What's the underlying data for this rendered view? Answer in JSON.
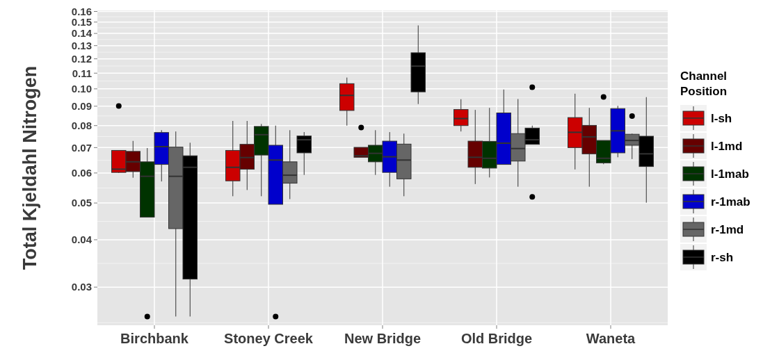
{
  "chart_data": {
    "type": "box",
    "ylabel": "Total Kjeldahl Nitrogen",
    "legend_title": "Channel Position",
    "legend": "right",
    "log": true,
    "grid": true,
    "categories": [
      "Birchbank",
      "Stoney Creek",
      "New Bridge",
      "Old Bridge",
      "Waneta"
    ],
    "ylim": [
      0.0238,
      0.161
    ],
    "yticks": [
      0.03,
      0.04,
      0.05,
      0.06,
      0.07,
      0.08,
      0.09,
      {
        "value": 0.1,
        "label": "0.10"
      },
      0.11,
      0.12,
      0.13,
      0.14,
      0.15,
      0.16
    ],
    "series": [
      {
        "name": "l-sh",
        "color": "#cc0000",
        "boxes": [
          {
            "low": 0.06,
            "q1": 0.0602,
            "median": 0.0614,
            "q3": 0.0688,
            "high": 0.0688,
            "outliers": [
              0.0901
            ]
          },
          {
            "low": 0.0521,
            "q1": 0.0572,
            "median": 0.0621,
            "q3": 0.0688,
            "high": 0.0823
          },
          {
            "low": 0.08,
            "q1": 0.0877,
            "median": 0.0961,
            "q3": 0.1032,
            "high": 0.1071
          },
          {
            "low": 0.0772,
            "q1": 0.08,
            "median": 0.0835,
            "q3": 0.0882,
            "high": 0.0939
          },
          {
            "low": 0.0613,
            "q1": 0.07,
            "median": 0.0768,
            "q3": 0.084,
            "high": 0.0971
          }
        ]
      },
      {
        "name": "l-1md",
        "color": "#660000",
        "boxes": [
          {
            "low": 0.0583,
            "q1": 0.0605,
            "median": 0.0642,
            "q3": 0.0684,
            "high": 0.0729
          },
          {
            "low": 0.0541,
            "q1": 0.0614,
            "median": 0.0659,
            "q3": 0.0714,
            "high": 0.0823
          },
          {
            "low": 0.066,
            "q1": 0.066,
            "median": 0.0666,
            "q3": 0.0701,
            "high": 0.0701,
            "outliers": [
              0.0791
            ]
          },
          {
            "low": 0.0561,
            "q1": 0.0621,
            "median": 0.066,
            "q3": 0.0728,
            "high": 0.088
          },
          {
            "low": 0.0552,
            "q1": 0.0674,
            "median": 0.0747,
            "q3": 0.0801,
            "high": 0.0891
          }
        ]
      },
      {
        "name": "l-1mab",
        "color": "#003300",
        "boxes": [
          {
            "low": 0.0459,
            "q1": 0.0459,
            "median": 0.0588,
            "q3": 0.0642,
            "high": 0.0698,
            "outliers": [
              0.0251
            ]
          },
          {
            "low": 0.0521,
            "q1": 0.0669,
            "median": 0.0757,
            "q3": 0.0796,
            "high": 0.0808
          },
          {
            "low": 0.0593,
            "q1": 0.0642,
            "median": 0.0676,
            "q3": 0.071,
            "high": 0.0778
          },
          {
            "low": 0.0584,
            "q1": 0.0618,
            "median": 0.0656,
            "q3": 0.0727,
            "high": 0.0891
          },
          {
            "low": 0.0633,
            "q1": 0.0638,
            "median": 0.0656,
            "q3": 0.0731,
            "high": 0.0731,
            "outliers": [
              0.0952
            ]
          }
        ]
      },
      {
        "name": "r-1mab",
        "color": "#0000cc",
        "boxes": [
          {
            "low": 0.057,
            "q1": 0.0632,
            "median": 0.0704,
            "q3": 0.0767,
            "high": 0.0778
          },
          {
            "low": 0.0496,
            "q1": 0.0496,
            "median": 0.0649,
            "q3": 0.071,
            "high": 0.08,
            "outliers": [
              0.0251
            ]
          },
          {
            "low": 0.0552,
            "q1": 0.0602,
            "median": 0.0662,
            "q3": 0.0728,
            "high": 0.0769
          },
          {
            "low": 0.0632,
            "q1": 0.0632,
            "median": 0.0719,
            "q3": 0.0864,
            "high": 0.0996
          },
          {
            "low": 0.066,
            "q1": 0.0678,
            "median": 0.0775,
            "q3": 0.0887,
            "high": 0.0902
          }
        ]
      },
      {
        "name": "r-1md",
        "color": "#666666",
        "boxes": [
          {
            "low": 0.0251,
            "q1": 0.0428,
            "median": 0.0588,
            "q3": 0.0702,
            "high": 0.0772
          },
          {
            "low": 0.0512,
            "q1": 0.0564,
            "median": 0.0592,
            "q3": 0.0642,
            "high": 0.0778
          },
          {
            "low": 0.0521,
            "q1": 0.0579,
            "median": 0.0649,
            "q3": 0.0715,
            "high": 0.0762
          },
          {
            "low": 0.0552,
            "q1": 0.0645,
            "median": 0.0696,
            "q3": 0.0762,
            "high": 0.094
          },
          {
            "low": 0.0653,
            "q1": 0.071,
            "median": 0.0731,
            "q3": 0.0759,
            "high": 0.0762,
            "outliers": [
              0.0848
            ]
          }
        ]
      },
      {
        "name": "r-sh",
        "color": "#000000",
        "boxes": [
          {
            "low": 0.0251,
            "q1": 0.0315,
            "median": 0.0621,
            "q3": 0.0666,
            "high": 0.0721
          },
          {
            "low": 0.0593,
            "q1": 0.0678,
            "median": 0.0734,
            "q3": 0.0751,
            "high": 0.0769
          },
          {
            "low": 0.0912,
            "q1": 0.0982,
            "median": 0.1148,
            "q3": 0.1245,
            "high": 0.147
          },
          {
            "low": 0.0714,
            "q1": 0.0714,
            "median": 0.0734,
            "q3": 0.0788,
            "high": 0.08,
            "outliers": [
              0.101,
              0.0519
            ]
          },
          {
            "low": 0.0501,
            "q1": 0.0624,
            "median": 0.0674,
            "q3": 0.075,
            "high": 0.0951
          }
        ]
      }
    ]
  }
}
